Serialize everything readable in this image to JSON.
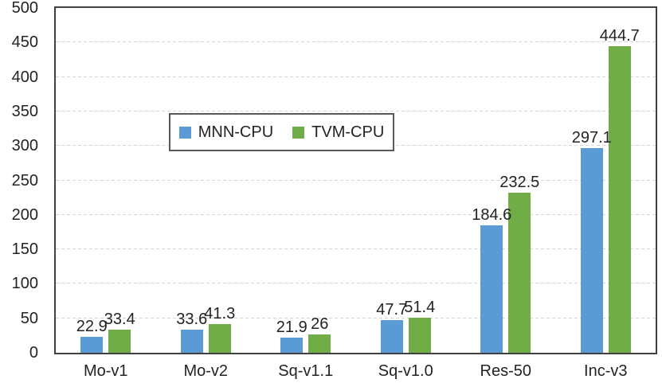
{
  "chart_data": {
    "type": "bar",
    "title": "",
    "categories": [
      "Mo-v1",
      "Mo-v2",
      "Sq-v1.1",
      "Sq-v1.0",
      "Res-50",
      "Inc-v3"
    ],
    "series": [
      {
        "name": "MNN-CPU",
        "color": "#5B9BD5",
        "values": [
          22.9,
          33.6,
          21.9,
          47.7,
          184.6,
          297.1
        ],
        "labels": [
          "22.9",
          "33.6",
          "21.9",
          "47.7",
          "184.6",
          "297.1"
        ]
      },
      {
        "name": "TVM-CPU",
        "color": "#70AD47",
        "values": [
          33.4,
          41.3,
          26,
          51.4,
          232.5,
          444.7
        ],
        "labels": [
          "33.4",
          "41.3",
          "26",
          "51.4",
          "232.5",
          "444.7"
        ]
      }
    ],
    "xlabel": "",
    "ylabel": "",
    "y_axis": {
      "min": 0,
      "max": 500,
      "step": 50,
      "ticks": [
        "0",
        "50",
        "100",
        "150",
        "200",
        "250",
        "300",
        "350",
        "400",
        "450",
        "500"
      ]
    },
    "grid": "horizontal-dashed",
    "gridline_color": "#d6d6d6",
    "axis_border_color": "#404040",
    "legend": {
      "position": "inside-upper-middle-left",
      "border_color": "#595959",
      "entries": [
        "MNN-CPU",
        "TVM-CPU"
      ]
    }
  }
}
